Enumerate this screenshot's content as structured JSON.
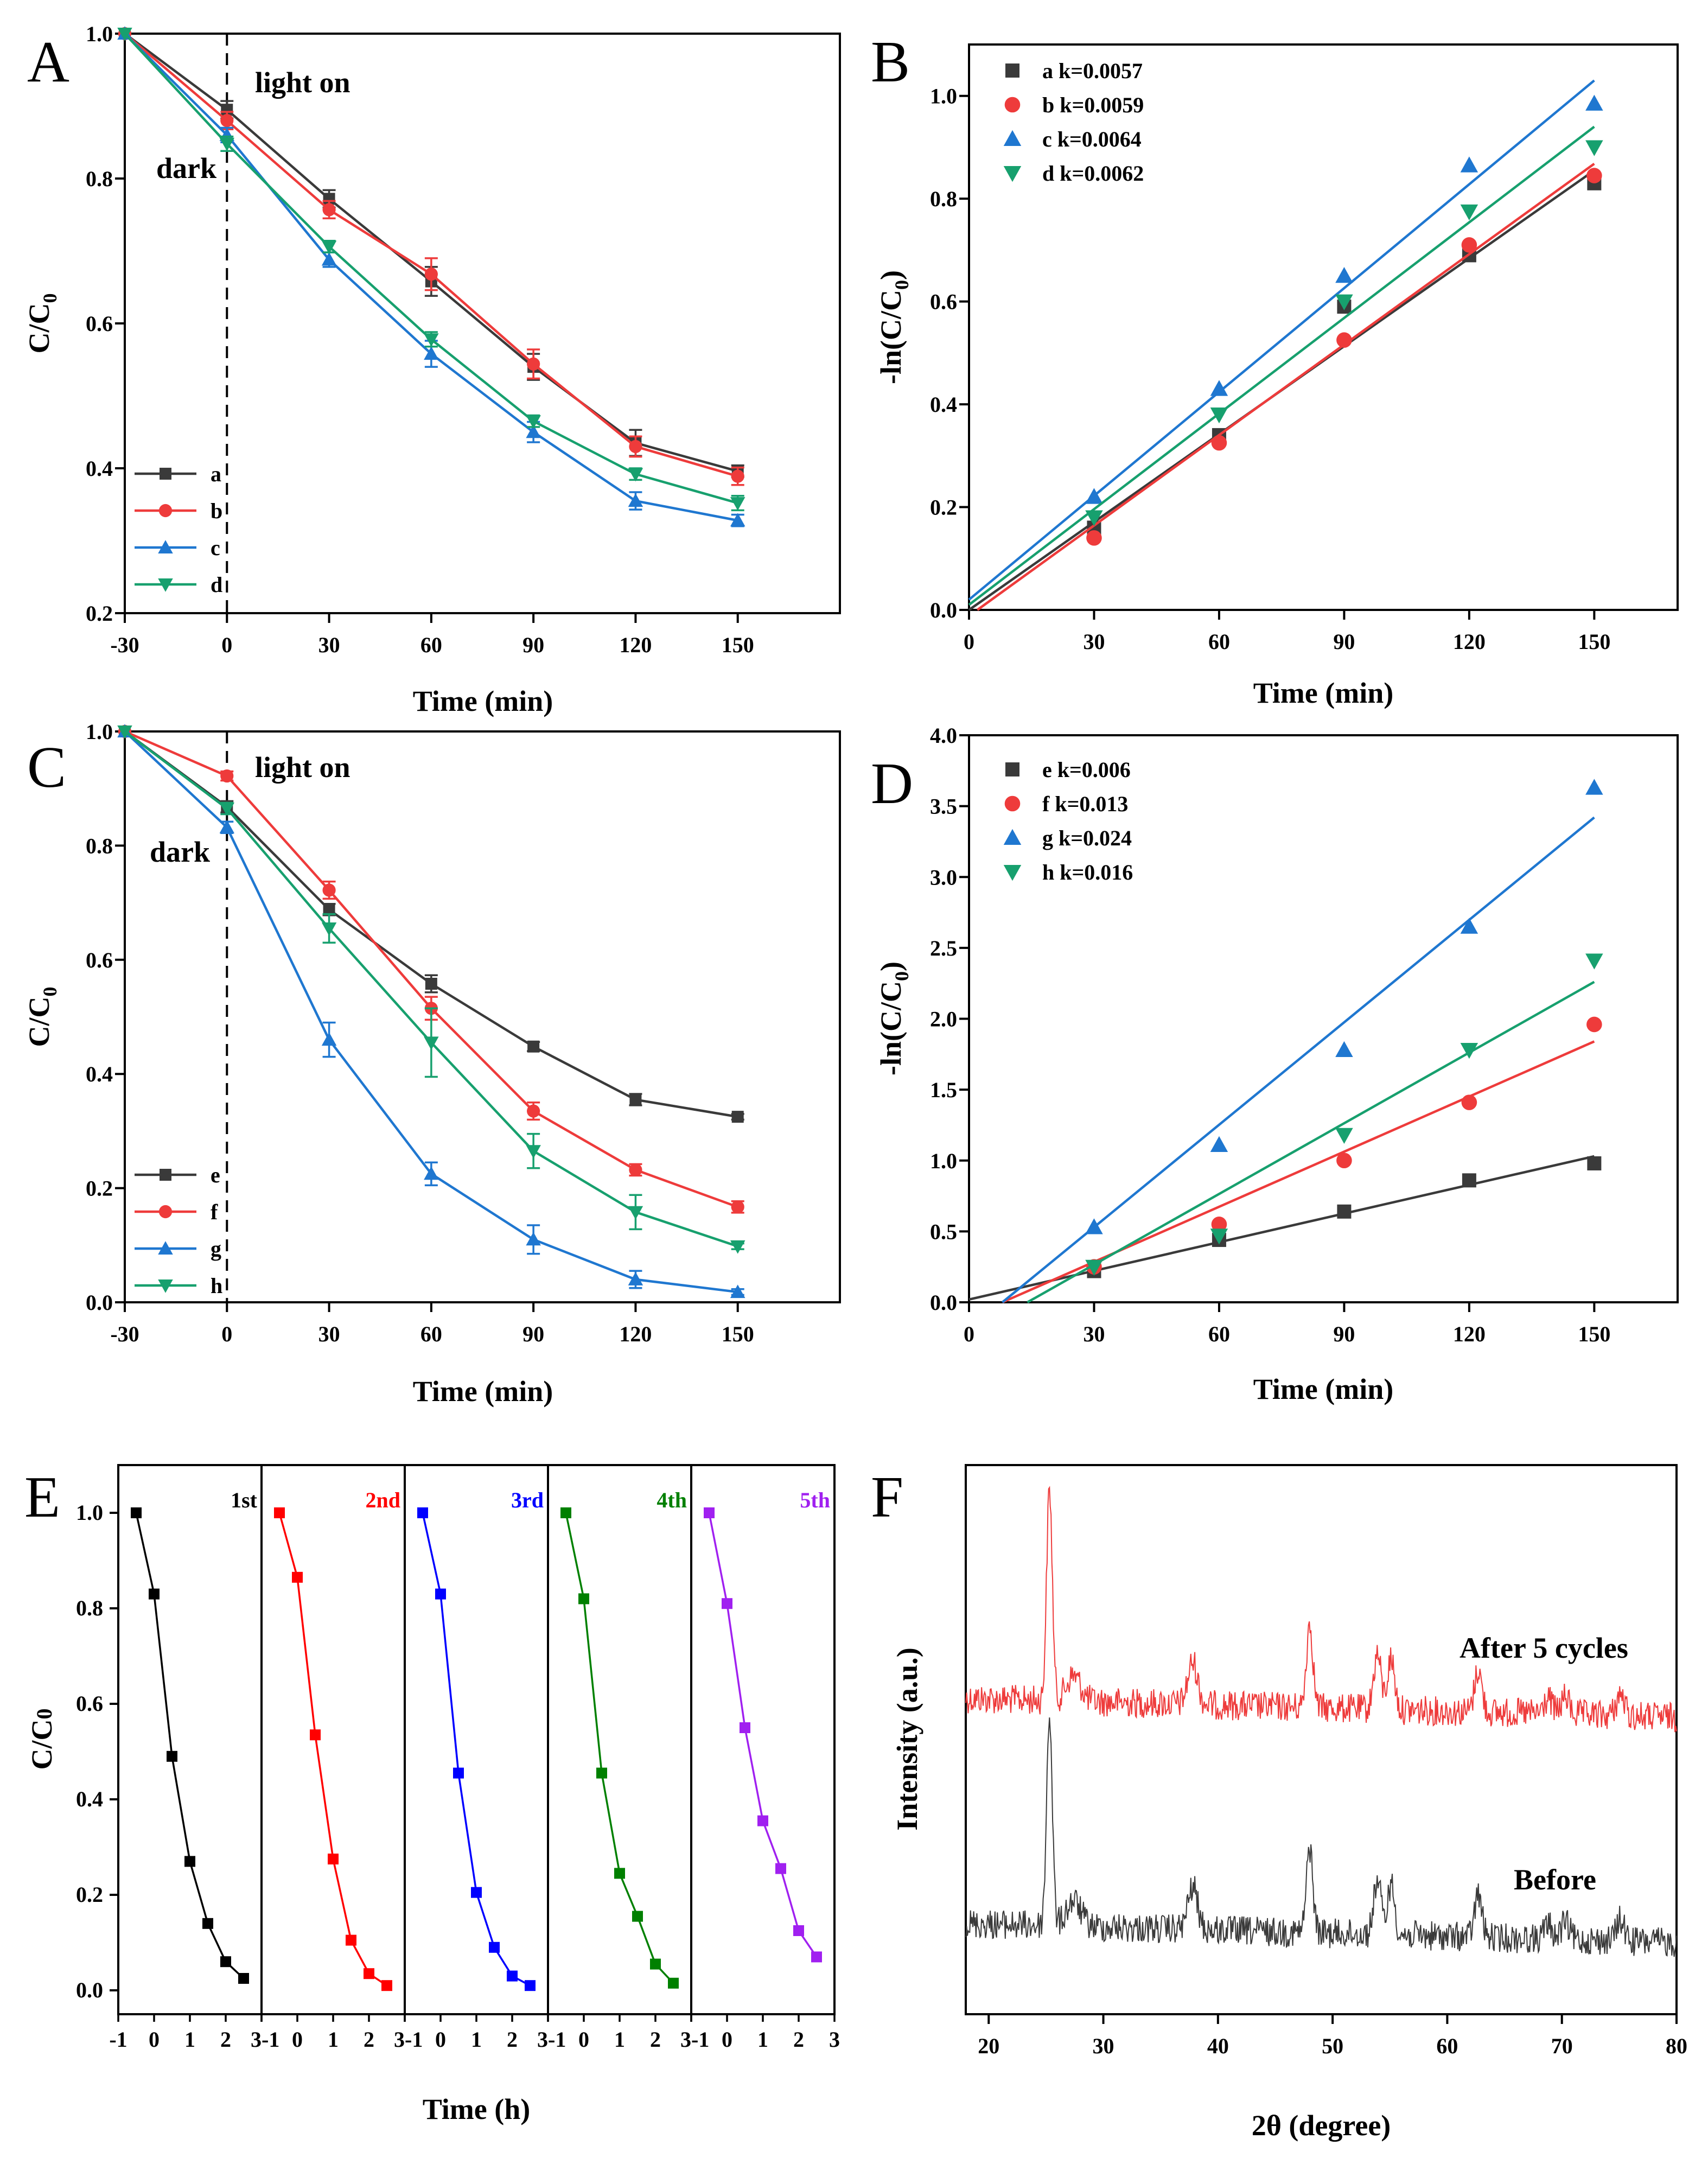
{
  "colors": {
    "black": "#3a3a3a",
    "red": "#ee3b3b",
    "blue": "#1f77d0",
    "green": "#17a06e",
    "e_black": "#000000",
    "e_red": "#ff0000",
    "e_blue": "#0000ff",
    "e_green": "#008000",
    "e_purple": "#a020f0"
  },
  "chart_data": [
    {
      "panel": "A",
      "type": "line",
      "xlabel": "Time (min)",
      "ylabel_main": "C/C",
      "ylabel_sub": "0",
      "xlim": [
        -30,
        180
      ],
      "ylim": [
        0.2,
        1.0
      ],
      "xticks": [
        -30,
        0,
        30,
        60,
        90,
        120,
        150
      ],
      "xtick_labels": [
        "-30",
        "0",
        "30",
        "60",
        "90",
        "120",
        "150"
      ],
      "yticks": [
        0.2,
        0.4,
        0.6,
        0.8,
        1.0
      ],
      "ytick_labels": [
        "0.2",
        "0.4",
        "0.6",
        "0.8",
        "1.0"
      ],
      "annotations": {
        "light": "light on",
        "dark": "dark"
      },
      "x": [
        -30,
        0,
        30,
        60,
        90,
        120,
        150
      ],
      "series": [
        {
          "name": "a",
          "color": "#3a3a3a",
          "marker": "square",
          "values": [
            1.0,
            0.895,
            0.772,
            0.658,
            0.54,
            0.435,
            0.396
          ],
          "err": [
            0,
            0.012,
            0.012,
            0.02,
            0.018,
            0.018,
            0.008
          ]
        },
        {
          "name": "b",
          "color": "#ee3b3b",
          "marker": "circle",
          "values": [
            1.0,
            0.88,
            0.757,
            0.668,
            0.544,
            0.43,
            0.389
          ],
          "err": [
            0,
            0.012,
            0.012,
            0.022,
            0.02,
            0.014,
            0.012
          ]
        },
        {
          "name": "c",
          "color": "#1f77d0",
          "marker": "triangle-up",
          "values": [
            1.0,
            0.86,
            0.688,
            0.558,
            0.45,
            0.355,
            0.328
          ],
          "err": [
            0,
            0.01,
            0.01,
            0.018,
            0.014,
            0.012,
            0.008
          ]
        },
        {
          "name": "d",
          "color": "#17a06e",
          "marker": "triangle-down",
          "values": [
            1.0,
            0.848,
            0.706,
            0.578,
            0.465,
            0.392,
            0.352
          ],
          "err": [
            0,
            0.01,
            0.008,
            0.01,
            0.008,
            0.008,
            0.01
          ]
        }
      ]
    },
    {
      "panel": "B",
      "type": "scatter",
      "xlabel": "Time (min)",
      "ylabel": "-ln(C/C",
      "ylabel_sub": "0",
      "ylabel_close": ")",
      "xlim": [
        0,
        170
      ],
      "ylim": [
        0,
        1.1
      ],
      "xticks": [
        0,
        30,
        60,
        90,
        120,
        150
      ],
      "xtick_labels": [
        "0",
        "30",
        "60",
        "90",
        "120",
        "150"
      ],
      "yticks": [
        0,
        0.2,
        0.4,
        0.6,
        0.8,
        1.0
      ],
      "ytick_labels": [
        "0.0",
        "0.2",
        "0.4",
        "0.6",
        "0.8",
        "1.0"
      ],
      "x": [
        30,
        60,
        90,
        120,
        150
      ],
      "series": [
        {
          "name": "a",
          "label": "k=0.0057",
          "color": "#3a3a3a",
          "marker": "square",
          "values": [
            0.16,
            0.34,
            0.59,
            0.69,
            0.83
          ],
          "fit": [
            [
              0,
              0.0
            ],
            [
              150,
              0.855
            ]
          ]
        },
        {
          "name": "b",
          "label": "k=0.0059",
          "color": "#ee3b3b",
          "marker": "circle",
          "values": [
            0.14,
            0.325,
            0.525,
            0.71,
            0.845
          ],
          "fit": [
            [
              2,
              0.0
            ],
            [
              150,
              0.868
            ]
          ]
        },
        {
          "name": "c",
          "label": "k=0.0064",
          "color": "#1f77d0",
          "marker": "triangle-up",
          "values": [
            0.22,
            0.43,
            0.65,
            0.865,
            0.985
          ],
          "fit": [
            [
              0,
              0.02
            ],
            [
              150,
              1.03
            ]
          ]
        },
        {
          "name": "d",
          "label": "k=0.0062",
          "color": "#17a06e",
          "marker": "triangle-down",
          "values": [
            0.18,
            0.38,
            0.6,
            0.775,
            0.9
          ],
          "fit": [
            [
              0,
              0.01
            ],
            [
              150,
              0.94
            ]
          ]
        }
      ]
    },
    {
      "panel": "C",
      "type": "line",
      "xlabel": "Time (min)",
      "ylabel_main": "C/C",
      "ylabel_sub": "0",
      "xlim": [
        -30,
        180
      ],
      "ylim": [
        0.0,
        1.0
      ],
      "xticks": [
        -30,
        0,
        30,
        60,
        90,
        120,
        150
      ],
      "xtick_labels": [
        "-30",
        "0",
        "30",
        "60",
        "90",
        "120",
        "150"
      ],
      "yticks": [
        0.0,
        0.2,
        0.4,
        0.6,
        0.8,
        1.0
      ],
      "ytick_labels": [
        "0.0",
        "0.2",
        "0.4",
        "0.6",
        "0.8",
        "1.0"
      ],
      "annotations": {
        "light": "light on",
        "dark": "dark"
      },
      "x": [
        -30,
        0,
        30,
        60,
        90,
        120,
        150
      ],
      "series": [
        {
          "name": "e",
          "color": "#3a3a3a",
          "marker": "square",
          "values": [
            1.0,
            0.868,
            0.688,
            0.558,
            0.448,
            0.355,
            0.325
          ],
          "err": [
            0,
            0.01,
            0.01,
            0.015,
            0.008,
            0.01,
            0.005
          ]
        },
        {
          "name": "f",
          "color": "#ee3b3b",
          "marker": "circle",
          "values": [
            1.0,
            0.922,
            0.722,
            0.515,
            0.335,
            0.232,
            0.167
          ],
          "err": [
            0,
            0.008,
            0.015,
            0.02,
            0.015,
            0.01,
            0.01
          ]
        },
        {
          "name": "g",
          "color": "#1f77d0",
          "marker": "triangle-up",
          "values": [
            1.0,
            0.832,
            0.46,
            0.225,
            0.11,
            0.04,
            0.018
          ],
          "err": [
            0,
            0.01,
            0.03,
            0.02,
            0.025,
            0.015,
            0.005
          ]
        },
        {
          "name": "h",
          "color": "#17a06e",
          "marker": "triangle-down",
          "values": [
            1.0,
            0.865,
            0.655,
            0.455,
            0.265,
            0.158,
            0.098
          ],
          "err": [
            0,
            0.01,
            0.025,
            0.06,
            0.03,
            0.03,
            0.005
          ]
        }
      ]
    },
    {
      "panel": "D",
      "type": "scatter",
      "xlabel": "Time (min)",
      "ylabel": "-ln(C/C",
      "ylabel_sub": "0",
      "ylabel_close": ")",
      "xlim": [
        0,
        170
      ],
      "ylim": [
        0,
        4.0
      ],
      "xticks": [
        0,
        30,
        60,
        90,
        120,
        150
      ],
      "xtick_labels": [
        "0",
        "30",
        "60",
        "90",
        "120",
        "150"
      ],
      "yticks": [
        0,
        0.5,
        1.0,
        1.5,
        2.0,
        2.5,
        3.0,
        3.5,
        4.0
      ],
      "ytick_labels": [
        "0.0",
        "0.5",
        "1.0",
        "1.5",
        "2.0",
        "2.5",
        "3.0",
        "3.5",
        "4.0"
      ],
      "x": [
        30,
        60,
        90,
        120,
        150
      ],
      "series": [
        {
          "name": "e",
          "label": "k=0.006",
          "color": "#3a3a3a",
          "marker": "square",
          "values": [
            0.22,
            0.44,
            0.64,
            0.86,
            0.98
          ],
          "fit": [
            [
              0,
              0.02
            ],
            [
              150,
              1.03
            ]
          ]
        },
        {
          "name": "f",
          "label": "k=0.013",
          "color": "#ee3b3b",
          "marker": "circle",
          "values": [
            0.25,
            0.55,
            1.0,
            1.41,
            1.96
          ],
          "fit": [
            [
              8,
              0.0
            ],
            [
              150,
              1.84
            ]
          ]
        },
        {
          "name": "g",
          "label": "k=0.024",
          "color": "#1f77d0",
          "marker": "triangle-up",
          "values": [
            0.53,
            1.11,
            1.78,
            2.65,
            3.63
          ],
          "fit": [
            [
              8,
              0.0
            ],
            [
              150,
              3.42
            ]
          ]
        },
        {
          "name": "h",
          "label": "k=0.016",
          "color": "#17a06e",
          "marker": "triangle-down",
          "values": [
            0.25,
            0.47,
            1.18,
            1.78,
            2.41
          ],
          "fit": [
            [
              14,
              0.0
            ],
            [
              150,
              2.26
            ]
          ]
        }
      ]
    },
    {
      "panel": "E",
      "type": "line",
      "xlabel": "Time (h)",
      "ylabel_main": "C/C",
      "ylabel_sub": "0",
      "xlim_per_cycle": [
        -1,
        3
      ],
      "ylim": [
        -0.05,
        1.1
      ],
      "yticks": [
        0.0,
        0.2,
        0.4,
        0.6,
        0.8,
        1.0
      ],
      "ytick_labels": [
        "0.0",
        "0.2",
        "0.4",
        "0.6",
        "0.8",
        "1.0"
      ],
      "xticks": [
        -1,
        0,
        1,
        2,
        3
      ],
      "xtick_labels": [
        "-1",
        "0",
        "1",
        "2",
        "3"
      ],
      "x": [
        -0.5,
        0,
        0.5,
        1,
        1.5,
        2,
        2.5
      ],
      "cycles": [
        {
          "name": "1st",
          "color": "#000000",
          "values": [
            1.0,
            0.83,
            0.49,
            0.27,
            0.14,
            0.06,
            0.025
          ]
        },
        {
          "name": "2nd",
          "color": "#ff0000",
          "values": [
            1.0,
            0.865,
            0.535,
            0.275,
            0.105,
            0.035,
            0.01
          ]
        },
        {
          "name": "3rd",
          "color": "#0000ff",
          "values": [
            1.0,
            0.83,
            0.455,
            0.205,
            0.09,
            0.03,
            0.01
          ]
        },
        {
          "name": "4th",
          "color": "#008000",
          "values": [
            1.0,
            0.82,
            0.455,
            0.245,
            0.155,
            0.055,
            0.015
          ]
        },
        {
          "name": "5th",
          "color": "#a020f0",
          "values": [
            1.0,
            0.81,
            0.55,
            0.355,
            0.255,
            0.125,
            0.07
          ]
        }
      ]
    },
    {
      "panel": "F",
      "type": "line",
      "xlabel": "2θ (degree)",
      "ylabel": "Intensity (a.u.)",
      "xlim": [
        18,
        80
      ],
      "xticks": [
        20,
        30,
        40,
        50,
        60,
        70,
        80
      ],
      "xtick_labels": [
        "20",
        "30",
        "40",
        "50",
        "60",
        "70",
        "80"
      ],
      "peaks": [
        {
          "pos": 25.3,
          "height": 1.0,
          "width": 0.35
        },
        {
          "pos": 27.4,
          "height": 0.12,
          "width": 0.9
        },
        {
          "pos": 37.8,
          "height": 0.2,
          "width": 0.6
        },
        {
          "pos": 48.0,
          "height": 0.4,
          "width": 0.4
        },
        {
          "pos": 53.9,
          "height": 0.26,
          "width": 0.45
        },
        {
          "pos": 55.1,
          "height": 0.24,
          "width": 0.45
        },
        {
          "pos": 62.7,
          "height": 0.2,
          "width": 0.45
        },
        {
          "pos": 68.8,
          "height": 0.07,
          "width": 0.5
        },
        {
          "pos": 70.3,
          "height": 0.08,
          "width": 0.5
        },
        {
          "pos": 75.1,
          "height": 0.1,
          "width": 0.5
        }
      ],
      "series": [
        {
          "name": "After 5 cycles",
          "color": "#ee3b3b"
        },
        {
          "name": "Before",
          "color": "#3a3a3a"
        }
      ]
    }
  ]
}
